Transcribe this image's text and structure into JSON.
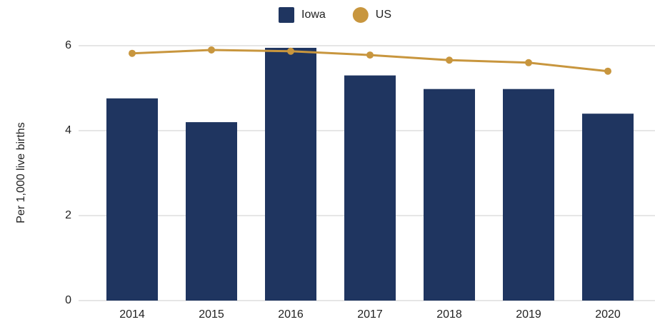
{
  "chart_data": {
    "type": "bar-line",
    "y_label": "Per 1,000 live births",
    "categories": [
      "2014",
      "2015",
      "2016",
      "2017",
      "2018",
      "2019",
      "2020"
    ],
    "series": [
      {
        "name": "Iowa",
        "type": "bar",
        "color": "#1f3560",
        "values": [
          4.76,
          4.2,
          5.95,
          5.3,
          4.98,
          4.98,
          4.4
        ]
      },
      {
        "name": "US",
        "type": "line",
        "color": "#c8963e",
        "values": [
          5.82,
          5.9,
          5.87,
          5.78,
          5.66,
          5.6,
          5.4
        ]
      }
    ],
    "ylim": [
      0,
      6
    ],
    "yticks": [
      0,
      2,
      4,
      6
    ],
    "grid": true,
    "legend": "top"
  }
}
